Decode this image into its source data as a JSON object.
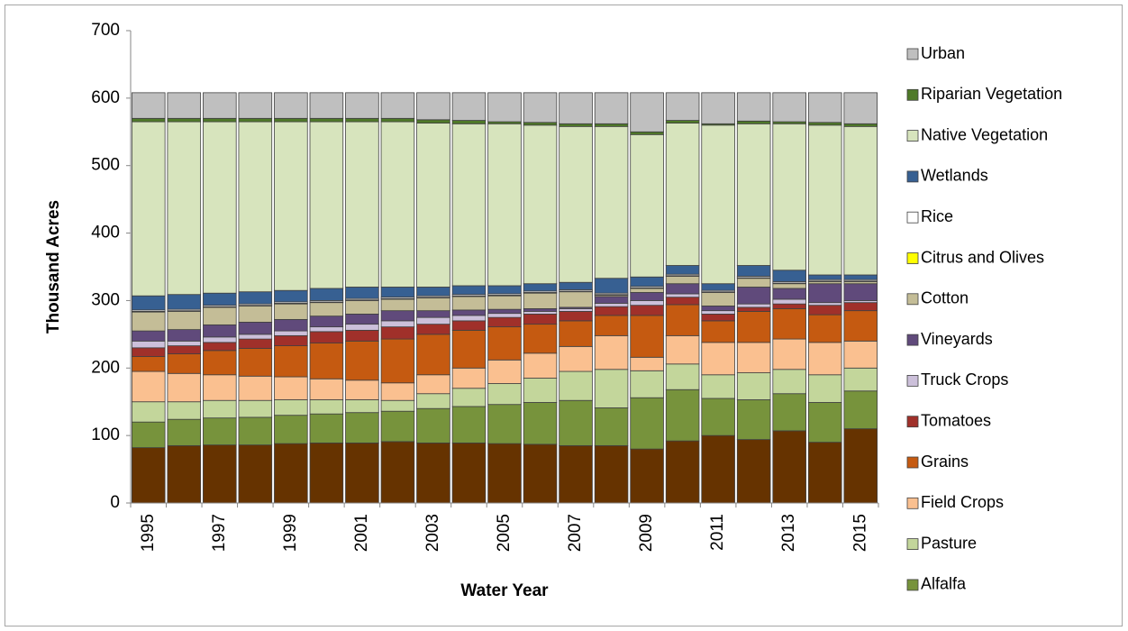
{
  "chart_data": {
    "type": "stacked_bar",
    "x_label": "Water Year",
    "y_label": "Thousand Acres",
    "categories": [
      "1995",
      null,
      "1997",
      null,
      "1999",
      null,
      "2001",
      null,
      "2003",
      null,
      "2005",
      null,
      "2007",
      null,
      "2009",
      null,
      "2011",
      null,
      "2013",
      null,
      "2015"
    ],
    "ylim": [
      0,
      700
    ],
    "yticks": [
      0,
      100,
      200,
      300,
      400,
      500,
      600,
      700
    ],
    "grid": false,
    "series": [
      {
        "color": "#663300",
        "values": [
          82,
          85,
          86,
          86,
          88,
          89,
          89,
          91,
          89,
          89,
          88,
          87,
          85,
          85,
          80,
          92,
          100,
          94,
          107,
          90,
          110
        ]
      },
      {
        "name": "Alfalfa",
        "color": "#77933c",
        "values": [
          38,
          39,
          40,
          41,
          42,
          43,
          45,
          45,
          51,
          54,
          58,
          62,
          67,
          56,
          76,
          76,
          55,
          59,
          55,
          59,
          56
        ]
      },
      {
        "name": "Pasture",
        "color": "#c3d69b",
        "values": [
          30,
          26,
          26,
          25,
          23,
          21,
          19,
          16,
          22,
          27,
          31,
          36,
          43,
          57,
          40,
          38,
          35,
          40,
          36,
          41,
          34
        ]
      },
      {
        "name": "Field Crops",
        "color": "#fac090",
        "values": [
          45,
          42,
          38,
          36,
          34,
          31,
          29,
          26,
          28,
          30,
          35,
          37,
          37,
          50,
          20,
          42,
          48,
          45,
          45,
          48,
          40
        ]
      },
      {
        "name": "Grains",
        "color": "#c55a11",
        "values": [
          22,
          29,
          36,
          41,
          46,
          53,
          58,
          65,
          60,
          56,
          49,
          43,
          38,
          30,
          62,
          46,
          32,
          46,
          45,
          41,
          45
        ]
      },
      {
        "name": "Tomatoes",
        "color": "#a0302a",
        "values": [
          13,
          12,
          12,
          14,
          15,
          17,
          16,
          18,
          15,
          14,
          14,
          15,
          14,
          13,
          15,
          11,
          10,
          6,
          7,
          14,
          12
        ]
      },
      {
        "name": "Truck Crops",
        "color": "#ccc0da",
        "values": [
          10,
          7,
          8,
          7,
          7,
          7,
          9,
          9,
          10,
          8,
          6,
          4,
          4,
          5,
          7,
          5,
          5,
          5,
          7,
          4,
          3
        ]
      },
      {
        "name": "Vineyards",
        "color": "#604a7b",
        "values": [
          15,
          17,
          18,
          18,
          17,
          16,
          15,
          15,
          10,
          8,
          6,
          4,
          2,
          10,
          12,
          15,
          7,
          25,
          16,
          28,
          25
        ]
      },
      {
        "name": "Cotton",
        "color": "#c4bd97",
        "values": [
          28,
          27,
          26,
          24,
          23,
          20,
          20,
          17,
          19,
          20,
          20,
          23,
          23,
          2,
          6,
          11,
          20,
          13,
          7,
          3,
          3
        ]
      },
      {
        "name": "Citrus and Olives",
        "color": "#ffff00",
        "values": [
          1,
          1,
          1,
          1,
          1,
          1,
          1,
          1,
          1,
          1,
          1,
          1,
          1,
          1,
          1,
          1,
          1,
          1,
          1,
          1,
          1
        ]
      },
      {
        "name": "Rice",
        "color": "#ffffff",
        "values": [
          2,
          2,
          2,
          2,
          2,
          2,
          2,
          2,
          2,
          2,
          2,
          2,
          2,
          2,
          2,
          2,
          2,
          2,
          2,
          2,
          2
        ]
      },
      {
        "name": "Wetlands",
        "color": "#376092",
        "values": [
          21,
          22,
          18,
          18,
          17,
          18,
          17,
          15,
          13,
          13,
          12,
          11,
          11,
          22,
          14,
          13,
          10,
          16,
          17,
          7,
          7
        ]
      },
      {
        "name": "Native Vegetation",
        "color": "#d7e4bd",
        "values": [
          258,
          256,
          254,
          252,
          250,
          247,
          245,
          245,
          243,
          240,
          240,
          235,
          231,
          225,
          211,
          211,
          235,
          210,
          217,
          222,
          220
        ]
      },
      {
        "name": "Riparian Vegetation",
        "color": "#4f7a28",
        "values": [
          5,
          5,
          5,
          5,
          5,
          5,
          5,
          5,
          5,
          5,
          3,
          4,
          4,
          4,
          4,
          4,
          2,
          4,
          3,
          4,
          4
        ]
      },
      {
        "name": "Urban",
        "color": "#bfbfbf",
        "values": [
          38,
          38,
          38,
          38,
          38,
          38,
          38,
          38,
          40,
          41,
          43,
          44,
          46,
          46,
          58,
          41,
          46,
          42,
          43,
          44,
          46
        ]
      }
    ]
  }
}
